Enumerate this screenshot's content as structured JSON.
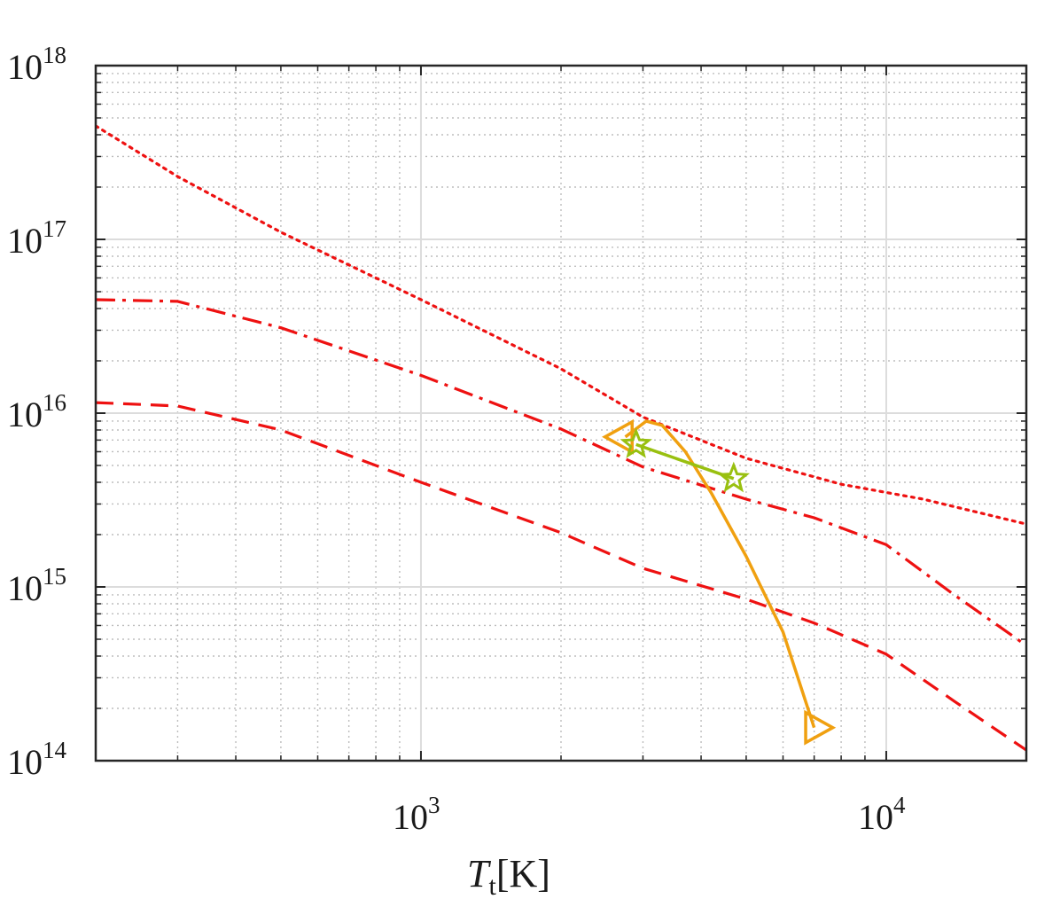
{
  "chart_data": {
    "type": "line",
    "title": "",
    "xlabel": {
      "symbol": "T",
      "subscript": "t",
      "unit": "[K]"
    },
    "ylabel": "",
    "xscale": "log",
    "yscale": "log",
    "xlim": [
      200,
      20000
    ],
    "ylim": [
      100000000000000.0,
      1e+18
    ],
    "grid": true,
    "minor_grid": true,
    "xticks": [
      {
        "value": 1000,
        "base": "10",
        "exp": "3"
      },
      {
        "value": 10000,
        "base": "10",
        "exp": "4"
      }
    ],
    "yticks": [
      {
        "value": 100000000000000.0,
        "base": "10",
        "exp": "14"
      },
      {
        "value": 1000000000000000.0,
        "base": "10",
        "exp": "15"
      },
      {
        "value": 1e+16,
        "base": "10",
        "exp": "16"
      },
      {
        "value": 1e+17,
        "base": "10",
        "exp": "17"
      },
      {
        "value": 1e+18,
        "base": "10",
        "exp": "18"
      }
    ],
    "colors": {
      "red": "#ee1111",
      "orange": "#f0a010",
      "green": "#99c010"
    },
    "series": [
      {
        "style": "dotted",
        "color": "#ee1111",
        "points": [
          [
            200,
            4.5e+17
          ],
          [
            300,
            2.3e+17
          ],
          [
            500,
            1.1e+17
          ],
          [
            1000,
            4.5e+16
          ],
          [
            2000,
            1.8e+16
          ],
          [
            3000,
            9500000000000000.0
          ],
          [
            5000,
            5500000000000000.0
          ],
          [
            8000,
            3900000000000000.0
          ],
          [
            12000,
            3200000000000000.0
          ],
          [
            20000,
            2300000000000000.0
          ]
        ]
      },
      {
        "style": "dashdot",
        "color": "#ee1111",
        "points": [
          [
            200,
            4.5e+16
          ],
          [
            300,
            4.4e+16
          ],
          [
            500,
            3.1e+16
          ],
          [
            1000,
            1.65e+16
          ],
          [
            2000,
            8100000000000000.0
          ],
          [
            3000,
            4900000000000000.0
          ],
          [
            5000,
            3200000000000000.0
          ],
          [
            7000,
            2500000000000000.0
          ],
          [
            10000,
            1750000000000000.0
          ],
          [
            14000,
            900000000000000.0
          ],
          [
            20000,
            460000000000000.0
          ]
        ]
      },
      {
        "style": "dashed",
        "color": "#ee1111",
        "points": [
          [
            200,
            1.15e+16
          ],
          [
            300,
            1.1e+16
          ],
          [
            500,
            8000000000000000.0
          ],
          [
            1000,
            4000000000000000.0
          ],
          [
            2000,
            2050000000000000.0
          ],
          [
            3000,
            1280000000000000.0
          ],
          [
            5000,
            850000000000000.0
          ],
          [
            7000,
            620000000000000.0
          ],
          [
            10000,
            410000000000000.0
          ],
          [
            14000,
            220000000000000.0
          ],
          [
            20000,
            115000000000000.0
          ]
        ]
      },
      {
        "style": "solid",
        "color": "#f0a010",
        "marker": "triangle",
        "points": [
          [
            2750,
            7300000000000000.0
          ],
          [
            3050,
            9000000000000000.0
          ],
          [
            3300,
            8500000000000000.0
          ],
          [
            3700,
            6000000000000000.0
          ],
          [
            4200,
            3500000000000000.0
          ],
          [
            5000,
            1500000000000000.0
          ],
          [
            6000,
            550000000000000.0
          ],
          [
            7000,
            155000000000000.0
          ]
        ]
      },
      {
        "style": "solid",
        "color": "#99c010",
        "marker": "star",
        "points": [
          [
            2900,
            6600000000000000.0
          ],
          [
            4700,
            4200000000000000.0
          ]
        ]
      }
    ]
  }
}
